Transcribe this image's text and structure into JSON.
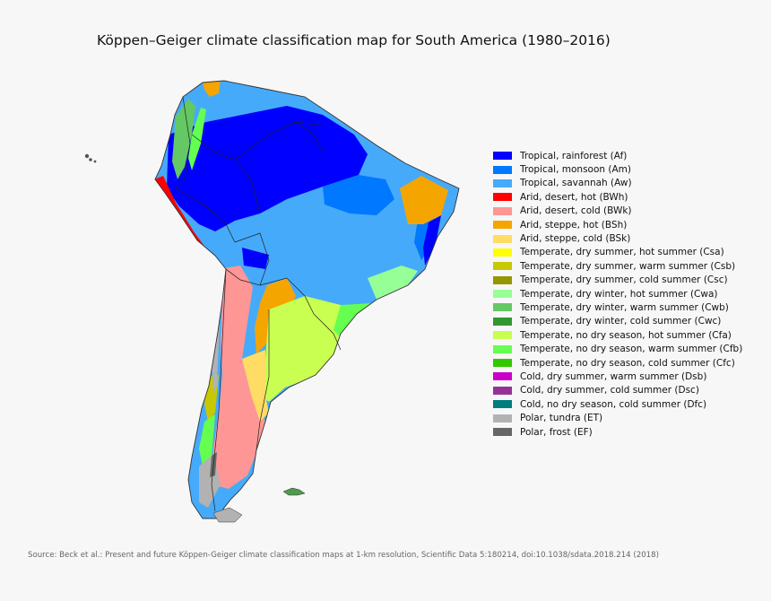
{
  "title": "Köppen–Geiger climate classification map for South America (1980–2016)",
  "legend": [
    {
      "label": "Tropical, rainforest (Af)",
      "color": "#0000fe"
    },
    {
      "label": "Tropical, monsoon (Am)",
      "color": "#0078ff"
    },
    {
      "label": "Tropical, savannah (Aw)",
      "color": "#46aafa"
    },
    {
      "label": "Arid, desert, hot (BWh)",
      "color": "#ff0000"
    },
    {
      "label": "Arid, desert, cold (BWk)",
      "color": "#ff9696"
    },
    {
      "label": "Arid, steppe, hot (BSh)",
      "color": "#f5a500"
    },
    {
      "label": "Arid, steppe, cold (BSk)",
      "color": "#ffdc64"
    },
    {
      "label": "Temperate, dry summer, hot summer (Csa)",
      "color": "#ffff00"
    },
    {
      "label": "Temperate, dry summer, warm summer (Csb)",
      "color": "#c8c800"
    },
    {
      "label": "Temperate, dry summer, cold summer (Csc)",
      "color": "#969600"
    },
    {
      "label": "Temperate, dry winter, hot summer (Cwa)",
      "color": "#96ff96"
    },
    {
      "label": "Temperate, dry winter, warm summer (Cwb)",
      "color": "#64c864"
    },
    {
      "label": "Temperate, dry winter, cold summer (Cwc)",
      "color": "#329632"
    },
    {
      "label": "Temperate, no dry season, hot summer (Cfa)",
      "color": "#c8ff50"
    },
    {
      "label": "Temperate, no dry season, warm summer (Cfb)",
      "color": "#64ff50"
    },
    {
      "label": "Temperate, no dry season, cold summer (Cfc)",
      "color": "#32c800"
    },
    {
      "label": "Cold, dry summer, warm summer (Dsb)",
      "color": "#c800c8"
    },
    {
      "label": "Cold, dry summer, cold summer (Dsc)",
      "color": "#963296"
    },
    {
      "label": "Cold, no dry season, cold summer (Dfc)",
      "color": "#007d7d"
    },
    {
      "label": "Polar, tundra (ET)",
      "color": "#b2b2b2"
    },
    {
      "label": "Polar, frost (EF)",
      "color": "#666666"
    }
  ],
  "source": "Source: Beck et al.: Present and future Köppen-Geiger climate classification maps at 1-km resolution, Scientific Data 5:180214, doi:10.1038/sdata.2018.214 (2018)"
}
